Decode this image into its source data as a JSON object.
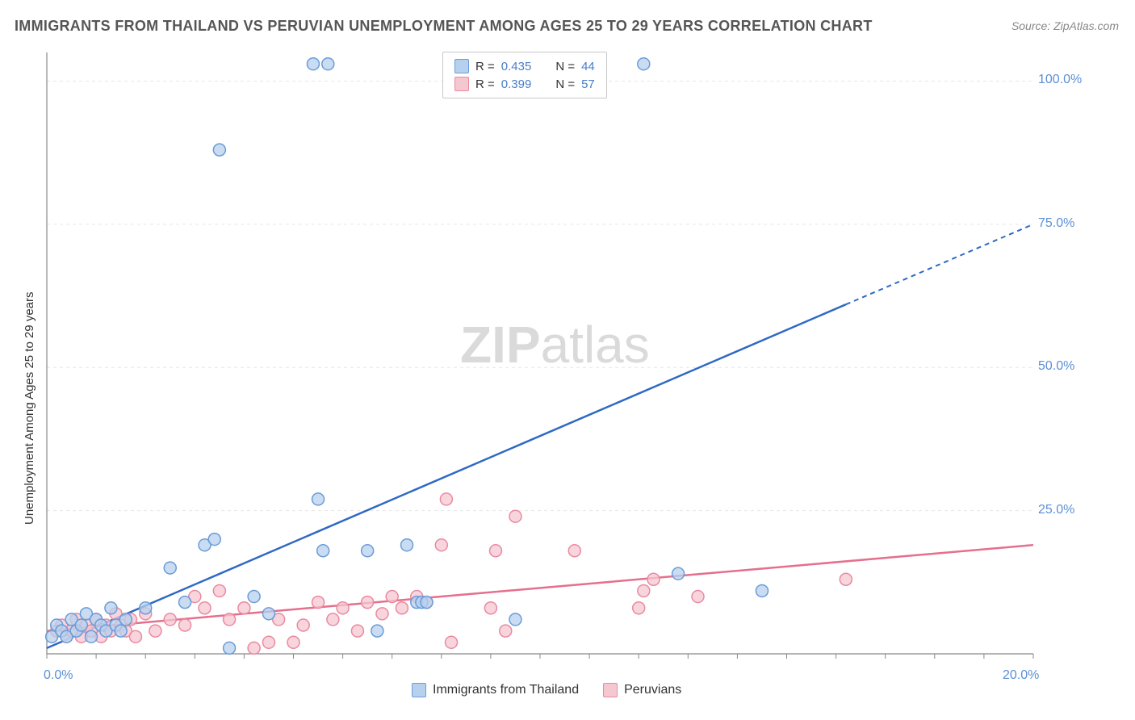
{
  "title": "IMMIGRANTS FROM THAILAND VS PERUVIAN UNEMPLOYMENT AMONG AGES 25 TO 29 YEARS CORRELATION CHART",
  "source": "Source: ZipAtlas.com",
  "watermark_zip": "ZIP",
  "watermark_atlas": "atlas",
  "ylabel": "Unemployment Among Ages 25 to 29 years",
  "chart": {
    "type": "scatter",
    "xlim": [
      0,
      20
    ],
    "ylim": [
      0,
      105
    ],
    "ytick_positions": [
      25,
      50,
      75,
      100
    ],
    "ytick_labels": [
      "25.0%",
      "50.0%",
      "75.0%",
      "100.0%"
    ],
    "xtick_positions": [
      0,
      20
    ],
    "xtick_labels": [
      "0.0%",
      "20.0%"
    ],
    "x_minor_ticks": [
      0,
      1,
      2,
      3,
      4,
      5,
      6,
      7,
      8,
      9,
      10,
      11,
      12,
      13,
      14,
      15,
      16,
      17,
      18,
      19,
      20
    ],
    "background_color": "#ffffff",
    "grid_color": "#e6e6e6",
    "axis_color": "#888888",
    "tick_label_color": "#5b8fd6",
    "marker_radius": 7.5,
    "marker_stroke_width": 1.5,
    "series": [
      {
        "name": "Immigrants from Thailand",
        "color_fill": "#b7d0ee",
        "color_stroke": "#6a9cd8",
        "R": "0.435",
        "N": "44",
        "trend": {
          "x1": 0,
          "y1": 1,
          "x2": 16.2,
          "y2": 61,
          "dash_from_x": 16.2,
          "dash_to_x": 20,
          "dash_to_y": 75
        },
        "trend_color": "#2f69c4",
        "points": [
          [
            0.1,
            3
          ],
          [
            0.2,
            5
          ],
          [
            0.3,
            4
          ],
          [
            0.4,
            3
          ],
          [
            0.5,
            6
          ],
          [
            0.6,
            4
          ],
          [
            0.7,
            5
          ],
          [
            0.8,
            7
          ],
          [
            0.9,
            3
          ],
          [
            1.0,
            6
          ],
          [
            1.1,
            5
          ],
          [
            1.2,
            4
          ],
          [
            1.3,
            8
          ],
          [
            1.4,
            5
          ],
          [
            1.5,
            4
          ],
          [
            1.6,
            6
          ],
          [
            2.0,
            8
          ],
          [
            2.5,
            15
          ],
          [
            2.8,
            9
          ],
          [
            3.2,
            19
          ],
          [
            3.4,
            20
          ],
          [
            3.5,
            88
          ],
          [
            3.7,
            1
          ],
          [
            4.2,
            10
          ],
          [
            4.5,
            7
          ],
          [
            5.4,
            103
          ],
          [
            5.5,
            27
          ],
          [
            5.6,
            18
          ],
          [
            5.7,
            103
          ],
          [
            6.5,
            18
          ],
          [
            6.7,
            4
          ],
          [
            7.3,
            19
          ],
          [
            7.5,
            9
          ],
          [
            7.6,
            9
          ],
          [
            7.7,
            9
          ],
          [
            9.5,
            6
          ],
          [
            12.1,
            103
          ],
          [
            12.8,
            14
          ],
          [
            14.5,
            11
          ]
        ]
      },
      {
        "name": "Peruvians",
        "color_fill": "#f5c7d1",
        "color_stroke": "#e98aa0",
        "R": "0.399",
        "N": "57",
        "trend": {
          "x1": 0,
          "y1": 4,
          "x2": 20,
          "y2": 19
        },
        "trend_color": "#e56f8d",
        "points": [
          [
            0.2,
            4
          ],
          [
            0.3,
            5
          ],
          [
            0.4,
            3
          ],
          [
            0.5,
            4
          ],
          [
            0.6,
            6
          ],
          [
            0.7,
            3
          ],
          [
            0.8,
            5
          ],
          [
            0.9,
            4
          ],
          [
            1.0,
            6
          ],
          [
            1.1,
            3
          ],
          [
            1.2,
            5
          ],
          [
            1.3,
            4
          ],
          [
            1.4,
            7
          ],
          [
            1.5,
            5
          ],
          [
            1.6,
            4
          ],
          [
            1.7,
            6
          ],
          [
            1.8,
            3
          ],
          [
            2.0,
            7
          ],
          [
            2.2,
            4
          ],
          [
            2.5,
            6
          ],
          [
            2.8,
            5
          ],
          [
            3.0,
            10
          ],
          [
            3.2,
            8
          ],
          [
            3.5,
            11
          ],
          [
            3.7,
            6
          ],
          [
            4.0,
            8
          ],
          [
            4.2,
            1
          ],
          [
            4.5,
            2
          ],
          [
            4.7,
            6
          ],
          [
            5.0,
            2
          ],
          [
            5.2,
            5
          ],
          [
            5.5,
            9
          ],
          [
            5.8,
            6
          ],
          [
            6.0,
            8
          ],
          [
            6.3,
            4
          ],
          [
            6.5,
            9
          ],
          [
            6.8,
            7
          ],
          [
            7.0,
            10
          ],
          [
            7.2,
            8
          ],
          [
            7.5,
            10
          ],
          [
            7.7,
            9
          ],
          [
            8.0,
            19
          ],
          [
            8.1,
            27
          ],
          [
            8.2,
            2
          ],
          [
            9.0,
            8
          ],
          [
            9.1,
            18
          ],
          [
            9.3,
            4
          ],
          [
            9.5,
            24
          ],
          [
            10.7,
            18
          ],
          [
            12.0,
            8
          ],
          [
            12.1,
            11
          ],
          [
            12.3,
            13
          ],
          [
            13.2,
            10
          ],
          [
            16.2,
            13
          ]
        ]
      }
    ]
  },
  "legend_bottom": [
    {
      "label": "Immigrants from Thailand",
      "fill": "#b7d0ee",
      "stroke": "#6a9cd8"
    },
    {
      "label": "Peruvians",
      "fill": "#f5c7d1",
      "stroke": "#e98aa0"
    }
  ]
}
